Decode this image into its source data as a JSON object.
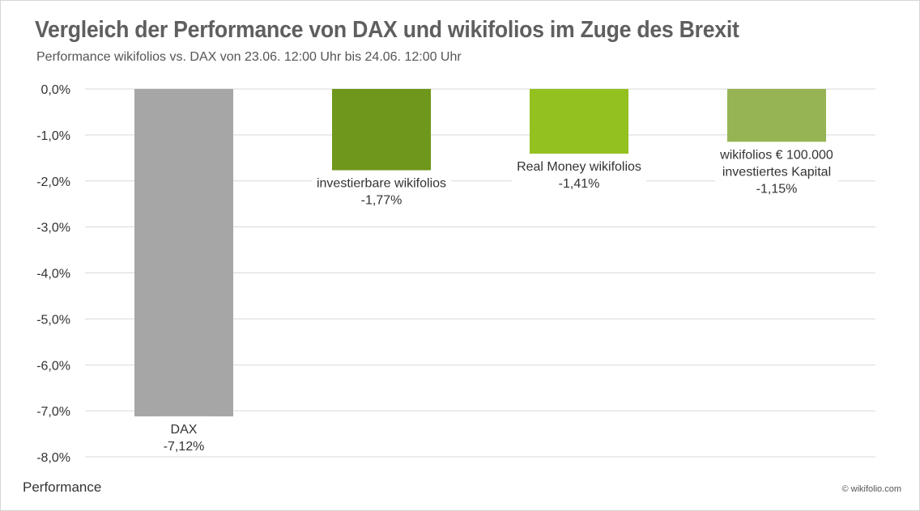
{
  "title": "Vergleich der Performance von DAX und wikifolios im Zuge des Brexit",
  "subtitle": "Performance wikifolios vs. DAX von 23.06. 12:00 Uhr bis 24.06. 12:00 Uhr",
  "footer_label": "Performance",
  "copyright": "© wikifolio.com",
  "chart_data": {
    "type": "bar",
    "ylim": [
      -8.0,
      0.0
    ],
    "yticks": [
      {
        "value": 0.0,
        "label": "0,0%"
      },
      {
        "value": -1.0,
        "label": "-1,0%"
      },
      {
        "value": -2.0,
        "label": "-2,0%"
      },
      {
        "value": -3.0,
        "label": "-3,0%"
      },
      {
        "value": -4.0,
        "label": "-4,0%"
      },
      {
        "value": -5.0,
        "label": "-5,0%"
      },
      {
        "value": -6.0,
        "label": "-6,0%"
      },
      {
        "value": -7.0,
        "label": "-7,0%"
      },
      {
        "value": -8.0,
        "label": "-8,0%"
      }
    ],
    "grid": true,
    "legend": "none",
    "bars": [
      {
        "category": [
          "DAX"
        ],
        "value": -7.12,
        "value_label": "-7,12%",
        "color": "#a6a6a6",
        "label_position": "below"
      },
      {
        "category": [
          "investierbare wikifolios"
        ],
        "value": -1.77,
        "value_label": "-1,77%",
        "color": "#6f971b",
        "label_position": "below"
      },
      {
        "category": [
          "Real Money wikifolios"
        ],
        "value": -1.41,
        "value_label": "-1,41%",
        "color": "#93c11f",
        "label_position": "below"
      },
      {
        "category": [
          "wikifolios € 100.000",
          "investiertes Kapital"
        ],
        "value": -1.15,
        "value_label": "-1,15%",
        "color": "#97b455",
        "label_position": "below"
      }
    ]
  }
}
